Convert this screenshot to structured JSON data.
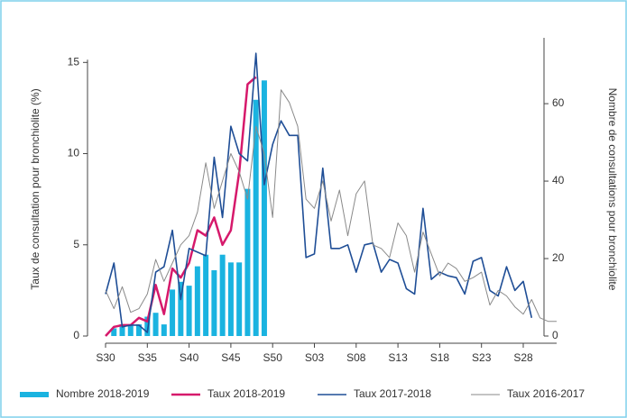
{
  "chart_data": {
    "type": "combo",
    "ylabel": "Taux de consultation pour bronchiolite (%)",
    "y2label": "Nombre de consultations pour bronchiolite",
    "categories": [
      "S30",
      null,
      null,
      null,
      null,
      "S35",
      null,
      null,
      null,
      null,
      "S40",
      null,
      null,
      null,
      null,
      "S45",
      null,
      null,
      null,
      null,
      "S50",
      null,
      null,
      null,
      null,
      "S03",
      null,
      null,
      null,
      null,
      "S08",
      null,
      null,
      null,
      null,
      "S13",
      null,
      null,
      null,
      null,
      "S18",
      null,
      null,
      null,
      null,
      "S23",
      null,
      null,
      null,
      null,
      "S28",
      null,
      null,
      null,
      null
    ],
    "ylim": [
      0,
      16.2
    ],
    "yticks": [
      0,
      5,
      10,
      15
    ],
    "y2lim": [
      0,
      76.3
    ],
    "y2ticks": [
      0,
      20,
      40,
      60
    ],
    "series": [
      {
        "name": "Nombre 2018-2019",
        "kind": "bar",
        "axis": "y2",
        "color": "#1ab3e0",
        "values": [
          null,
          2,
          3,
          3,
          3,
          5,
          6,
          3,
          12,
          14,
          13,
          18,
          21,
          17,
          21,
          19,
          19,
          38,
          61,
          66,
          null,
          null,
          null,
          null,
          null,
          null,
          null,
          null,
          null,
          null,
          null,
          null,
          null,
          null,
          null,
          null,
          null,
          null,
          null,
          null,
          null,
          null,
          null,
          null,
          null,
          null,
          null,
          null,
          null,
          null,
          null,
          null,
          null,
          null,
          null
        ]
      },
      {
        "name": "Taux 2018-2019",
        "kind": "line",
        "color": "#d6196b",
        "values": [
          0,
          0.5,
          0.6,
          0.6,
          1.0,
          0.8,
          2.8,
          1.2,
          3.7,
          3.2,
          4.0,
          5.8,
          5.5,
          6.5,
          5.0,
          5.8,
          9.0,
          13.8,
          14.2,
          null,
          null,
          null,
          null,
          null,
          null,
          null,
          null,
          null,
          null,
          null,
          null,
          null,
          null,
          null,
          null,
          null,
          null,
          null,
          null,
          null,
          null,
          null,
          null,
          null,
          null,
          null,
          null,
          null,
          null,
          null,
          null,
          null,
          null,
          null,
          null
        ]
      },
      {
        "name": "Taux 2017-2018",
        "kind": "line",
        "color": "#1f4e96",
        "values": [
          2.3,
          4.0,
          0.5,
          0.6,
          0.6,
          0.2,
          3.5,
          3.8,
          5.8,
          2.0,
          4.8,
          4.6,
          4.4,
          9.8,
          6.5,
          11.5,
          10.0,
          9.6,
          15.5,
          8.3,
          10.5,
          11.8,
          11.0,
          11.0,
          4.3,
          4.5,
          9.2,
          4.8,
          4.8,
          5.0,
          3.5,
          5.0,
          5.1,
          3.5,
          4.2,
          4.0,
          2.6,
          2.3,
          7.0,
          3.1,
          3.5,
          3.3,
          3.2,
          2.3,
          4.1,
          4.3,
          2.5,
          2.2,
          3.8,
          2.5,
          3.0,
          1.0,
          null,
          null,
          null
        ]
      },
      {
        "name": "Taux 2016-2017",
        "kind": "line",
        "color": "#8a8a8a",
        "values": [
          2.5,
          1.5,
          2.7,
          1.3,
          1.5,
          2.3,
          4.2,
          3.0,
          4.0,
          5.0,
          5.5,
          6.8,
          9.5,
          7.0,
          8.5,
          10.0,
          9.0,
          7.5,
          11.5,
          10.0,
          6.5,
          13.5,
          12.8,
          11.5,
          7.5,
          7.0,
          8.5,
          6.3,
          8.0,
          5.5,
          7.8,
          8.5,
          5.0,
          4.8,
          4.3,
          6.2,
          5.5,
          3.5,
          5.7,
          4.5,
          3.3,
          4.0,
          3.7,
          3.0,
          3.2,
          3.5,
          1.7,
          2.5,
          2.2,
          1.6,
          1.2,
          2.0,
          1.0,
          0.8,
          0.8
        ]
      }
    ],
    "legend": "bottom"
  }
}
